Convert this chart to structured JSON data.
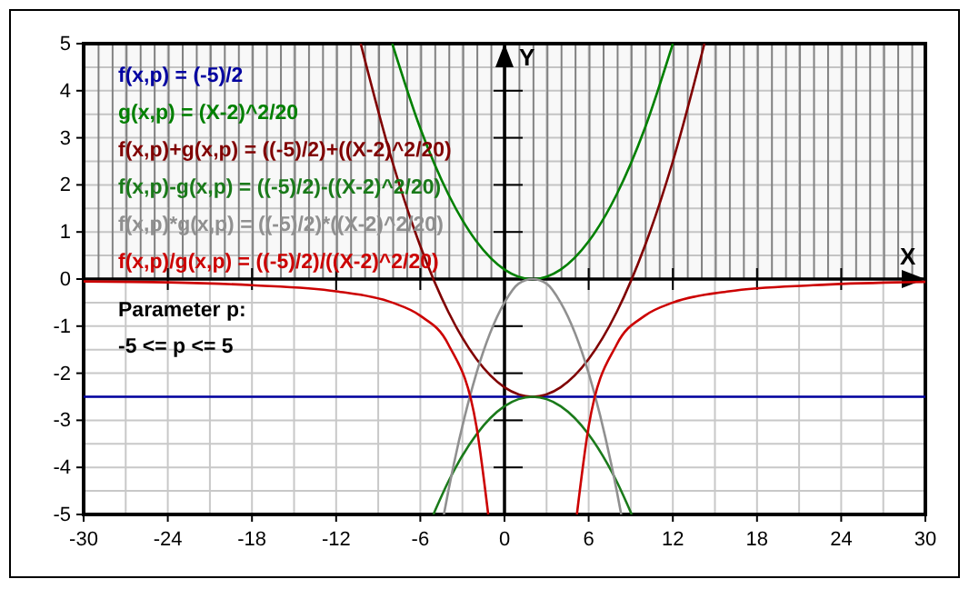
{
  "chart_data": {
    "type": "line",
    "xlabel": "X",
    "ylabel": "Y",
    "xlim": [
      -30,
      30
    ],
    "ylim": [
      -5,
      5
    ],
    "xticks": [
      -30,
      -24,
      -18,
      -12,
      -6,
      0,
      6,
      12,
      18,
      24,
      30
    ],
    "yticks": [
      -5,
      -4,
      -3,
      -2,
      -1,
      0,
      1,
      2,
      3,
      4,
      5
    ],
    "grid": true,
    "legend": "top left",
    "bands": [
      {
        "axis": "y",
        "from": 0,
        "to": 5,
        "color": "#808080"
      }
    ],
    "series": [
      {
        "name": "f(x,p) = (-5)/2",
        "color": "#0000a0",
        "x": [
          -30,
          30
        ],
        "values": [
          -2.5,
          -2.5
        ]
      },
      {
        "name": "g(x,p) = (X-2)^2/20",
        "color": "#008000",
        "x": [
          -8,
          -6,
          -4,
          -2,
          0,
          1,
          2,
          3,
          4,
          6,
          8,
          10,
          12
        ],
        "values": [
          5,
          3.2,
          1.8,
          0.8,
          0.2,
          0.05,
          0,
          0.05,
          0.2,
          0.8,
          1.8,
          3.2,
          5
        ]
      },
      {
        "name": "f(x,p)+g(x,p) = ((-5)/2)+((X-2)^2/20)",
        "color": "#800000",
        "x": [
          -10.25,
          -8,
          -6,
          -4,
          -2,
          0,
          2,
          4,
          6,
          8,
          10,
          12,
          14.25
        ],
        "values": [
          5,
          2.5,
          0.7,
          -0.7,
          -1.7,
          -2.3,
          -2.5,
          -2.3,
          -1.7,
          -0.7,
          0.7,
          2.5,
          5
        ]
      },
      {
        "name": "f(x,p)-g(x,p) = ((-5)/2)-((X-2)^2/20)",
        "color": "#1a7a1a",
        "x": [
          -5.07,
          -4,
          -2,
          0,
          2,
          4,
          6,
          8,
          9.07
        ],
        "values": [
          -5,
          -4.3,
          -3.3,
          -2.7,
          -2.5,
          -2.7,
          -3.3,
          -4.3,
          -5
        ]
      },
      {
        "name": "f(x,p)*g(x,p) = ((-5)/2)*((X-2)^2/20)",
        "color": "#909090",
        "x": [
          -4.32,
          -4,
          -2,
          0,
          1,
          2,
          3,
          4,
          6,
          8,
          8.32
        ],
        "values": [
          -5,
          -4.5,
          -2,
          -0.5,
          -0.1,
          0,
          -0.1,
          -0.5,
          -2,
          -4.5,
          -5
        ]
      },
      {
        "name": "f(x,p)/g(x,p) = ((-5)/2)/((X-2)^2/20)",
        "color": "#cc0000",
        "x": [
          -30,
          -24,
          -18,
          -12,
          -8,
          -6,
          -4,
          -2,
          -1.16,
          2,
          5.16,
          6,
          8,
          10,
          12,
          16,
          22,
          28,
          30
        ],
        "values": [
          -0.05,
          -0.07,
          -0.13,
          -0.26,
          -0.5,
          -0.78,
          -1.39,
          -3.13,
          -5,
          null,
          -5,
          -3.13,
          -1.39,
          -0.78,
          -0.5,
          -0.26,
          -0.13,
          -0.07,
          -0.06
        ]
      }
    ],
    "annotations": [
      "Parameter p:",
      "-5 <= p <= 5"
    ]
  }
}
